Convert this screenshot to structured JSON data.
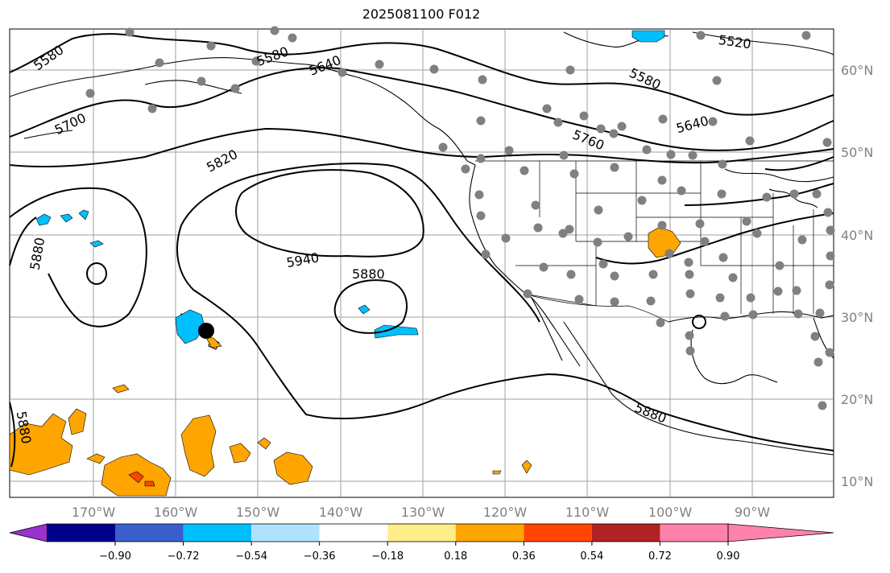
{
  "title": "2025081100 F012",
  "lat_labels": [
    "60°N",
    "50°N",
    "40°N",
    "30°N",
    "20°N",
    "10°N"
  ],
  "lon_labels": [
    "170°W",
    "160°W",
    "150°W",
    "140°W",
    "130°W",
    "120°W",
    "110°W",
    "100°W",
    "90°W"
  ],
  "contour_labels": [
    "5580",
    "5580",
    "5640",
    "5700",
    "5820",
    "5940",
    "5880",
    "5880",
    "5880",
    "5580",
    "5640",
    "5520",
    "5760",
    "5880"
  ],
  "colorbar": {
    "ticks": [
      "−0.90",
      "−0.72",
      "−0.54",
      "−0.36",
      "−0.18",
      "0.18",
      "0.36",
      "0.54",
      "0.72",
      "0.90"
    ],
    "colors": [
      "#9932CC",
      "#00008B",
      "#3A5FCD",
      "#00BFFF",
      "#B0E2FF",
      "#FFFFFF",
      "#FFEC8B",
      "#FFA500",
      "#FF4500",
      "#B22222",
      "#FF82AB"
    ]
  },
  "colors": {
    "land_outline": "#000000",
    "grid": "#808080",
    "station_dot": "#808080",
    "negative_anomaly": "#00BFFF",
    "positive_anomaly": "#FFA500",
    "strong_positive": "#FF4500"
  }
}
